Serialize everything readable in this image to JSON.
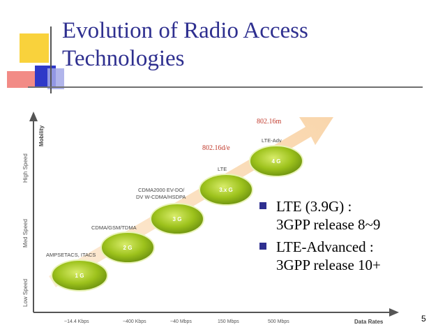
{
  "slide": {
    "title_line1": "Evolution of Radio Access",
    "title_line2": "Technologies",
    "page_number": "5"
  },
  "diagram": {
    "y_axis_label": "Mobility",
    "x_axis_label": "Data Rates",
    "y_levels": [
      "Low Speed",
      "Med Speed",
      "High Speed"
    ],
    "x_ticks": [
      "~14.4 Kbps",
      "~400 Kbps",
      "~40 Mbps",
      "150 Mbps",
      "500 Mbps"
    ],
    "generations": [
      {
        "badge": "1 G",
        "caption": "AMPSETACS, ITACS"
      },
      {
        "badge": "2 G",
        "caption": "CDMA/GSM/TDMA"
      },
      {
        "badge": "3 G",
        "caption_line1": "CDMA2000 EV-DO/",
        "caption_line2": "DV W-CDMA/HSDPA"
      },
      {
        "badge": "3.x G",
        "caption": "LTE"
      },
      {
        "badge": "4 G",
        "caption": "LTE-Adv"
      }
    ],
    "annotations": [
      "802.16d/e",
      "802.16m"
    ],
    "colors": {
      "arrow": "#fbe0c2",
      "badge": "#9dc21c",
      "annotation": "#c0392b"
    }
  },
  "bullets": [
    {
      "line1": "LTE (3.9G) :",
      "line2": "3GPP release 8~9"
    },
    {
      "line1": "LTE-Advanced :",
      "line2": "3GPP release 10+"
    }
  ]
}
